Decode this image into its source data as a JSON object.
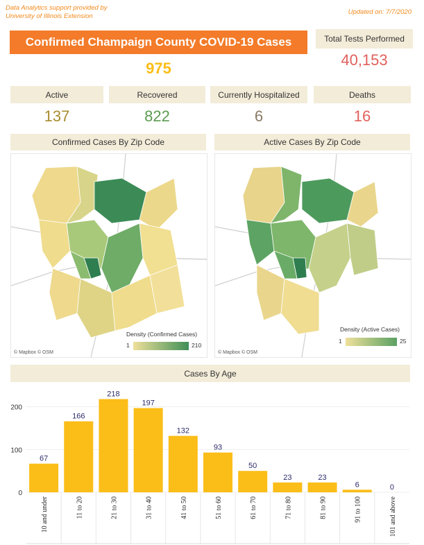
{
  "header": {
    "credit_line1": "Data Analytics support provided by",
    "credit_line2": "University of Illinois Extension",
    "updated": "Updated on: 7/7/2020",
    "title": "Confirmed Champaign County COVID-19 Cases",
    "confirmed_total": "975",
    "tests_label": "Total Tests Performed",
    "tests_value": "40,153"
  },
  "stats": [
    {
      "label": "Active",
      "value": "137",
      "color": "#a88c2e"
    },
    {
      "label": "Recovered",
      "value": "822",
      "color": "#5b9a4f"
    },
    {
      "label": "Currently Hospitalized",
      "value": "6",
      "color": "#8a7a66"
    },
    {
      "label": "Deaths",
      "value": "16",
      "color": "#e0605c"
    }
  ],
  "maps": [
    {
      "title": "Confirmed Cases By Zip Code",
      "legend_title": "Density (Confirmed Cases)",
      "legend_min": "1",
      "legend_max": "210",
      "attribution": "© Mapbox  © OSM"
    },
    {
      "title": "Active Cases By Zip Code",
      "legend_title": "Density (Active Cases)",
      "legend_min": "1",
      "legend_max": "25",
      "attribution": "© Mapbox  © OSM"
    }
  ],
  "age_chart_title": "Cases By Age",
  "chart_data": {
    "type": "bar",
    "categories": [
      "10 and under",
      "11 to 20",
      "21 to 30",
      "31 to 40",
      "41 to 50",
      "51 to 60",
      "61 to 70",
      "71 to 80",
      "81 to 90",
      "91 to 100",
      "101 and above"
    ],
    "values": [
      67,
      166,
      218,
      197,
      132,
      93,
      50,
      23,
      23,
      6,
      0
    ],
    "ylim": [
      0,
      240
    ],
    "yticks": [
      0,
      100,
      200
    ],
    "bar_color": "#fbbd18",
    "grid": true
  },
  "colors": {
    "accent": "#f37b29",
    "tests": "#e0605c",
    "confirmed": "#fbbd18",
    "panel_header": "#f3ecd9",
    "map_low": "#efdc8c",
    "map_high": "#3f8f57"
  }
}
